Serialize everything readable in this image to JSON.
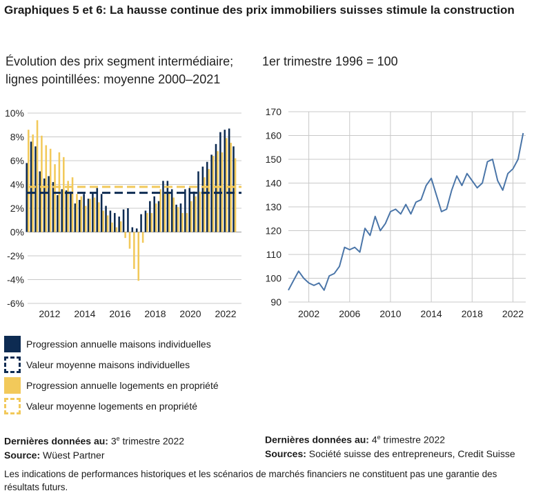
{
  "title": "Graphiques 5 et 6: La hausse continue des prix immobiliers suisses stimule la construction",
  "subtitle_left_1": "Évolution des prix segment intermédiaire;",
  "subtitle_left_2": "lignes pointillées: moyenne 2000–2021",
  "subtitle_right": "1er trimestre 1996 = 100",
  "colors": {
    "houses": "#0d2b52",
    "apartments": "#f2c95a",
    "line": "#4a75a8"
  },
  "legend": [
    {
      "label": "Progression annuelle maisons individuelles",
      "swatch": "solid-blue"
    },
    {
      "label": "Valeur moyenne maisons individuelles",
      "swatch": "dash-blue"
    },
    {
      "label": "Progression annuelle logements en propriété",
      "swatch": "solid-yellow"
    },
    {
      "label": "Valeur moyenne logements en propriété",
      "swatch": "dash-yellow"
    }
  ],
  "left_note": {
    "l1_bold": "Dernières données au:",
    "l1_pre": " 3",
    "l1_sup": "e",
    "l1_post": " trimestre 2022",
    "l2_bold": "Source:",
    "l2_text": " Wüest Partner"
  },
  "right_note": {
    "l1_bold": "Dernières données au:",
    "l1_pre": " 4",
    "l1_sup": "e",
    "l1_post": " trimestre 2022",
    "l2_bold": "Sources:",
    "l2_text": " Société suisse des entrepreneurs, Credit Suisse"
  },
  "disclaimer": "Les indications de performances historiques et les scénarios de marchés financiers ne constituent pas une garantie des résultats futurs.",
  "chart_data": [
    {
      "type": "bar",
      "x_tick_labels": [
        "2012",
        "2014",
        "2016",
        "2018",
        "2020",
        "2022"
      ],
      "x_tick_years": [
        2012,
        2014,
        2016,
        2018,
        2020,
        2022
      ],
      "y_tick_labels": [
        "10%",
        "8%",
        "6%",
        "4%",
        "2%",
        "0%",
        "-2%",
        "-4%",
        "-6%"
      ],
      "ylim": [
        -6,
        10
      ],
      "x_range": [
        2010.75,
        2022.9
      ],
      "grid": "horizontal",
      "quarters": [
        "2010Q4",
        "2011Q1",
        "2011Q2",
        "2011Q3",
        "2011Q4",
        "2012Q1",
        "2012Q2",
        "2012Q3",
        "2012Q4",
        "2013Q1",
        "2013Q2",
        "2013Q3",
        "2013Q4",
        "2014Q1",
        "2014Q2",
        "2014Q3",
        "2014Q4",
        "2015Q1",
        "2015Q2",
        "2015Q3",
        "2015Q4",
        "2016Q1",
        "2016Q2",
        "2016Q3",
        "2016Q4",
        "2017Q1",
        "2017Q2",
        "2017Q3",
        "2017Q4",
        "2018Q1",
        "2018Q2",
        "2018Q3",
        "2018Q4",
        "2019Q1",
        "2019Q2",
        "2019Q3",
        "2019Q4",
        "2020Q1",
        "2020Q2",
        "2020Q3",
        "2020Q4",
        "2021Q1",
        "2021Q2",
        "2021Q3",
        "2021Q4",
        "2022Q1",
        "2022Q2",
        "2022Q3"
      ],
      "series": [
        {
          "values": [
            5.8,
            7.6,
            7.2,
            5.1,
            4.5,
            4.7,
            4.2,
            3.1,
            3.6,
            3.5,
            3.4,
            2.4,
            2.7,
            3.2,
            2.8,
            3.3,
            3.7,
            3.2,
            2.2,
            1.8,
            1.6,
            1.3,
            1.9,
            2.0,
            0.4,
            0.3,
            1.5,
            1.8,
            2.6,
            3.0,
            2.6,
            4.3,
            4.3,
            3.6,
            2.3,
            2.4,
            3.6,
            3.7,
            3.4,
            5.1,
            5.5,
            5.9,
            6.5,
            7.4,
            8.4,
            8.6,
            8.7,
            7.2
          ]
        },
        {
          "values": [
            8.6,
            8.2,
            9.4,
            8.1,
            7.3,
            7.0,
            5.7,
            6.7,
            6.3,
            4.3,
            4.6,
            3.2,
            3.0,
            2.2,
            2.8,
            2.9,
            2.5,
            1.8,
            1.4,
            0.8,
            0.4,
            0.9,
            -0.5,
            -1.4,
            -3.1,
            -4.1,
            -0.9,
            1.6,
            1.6,
            2.4,
            3.6,
            3.2,
            3.4,
            2.9,
            2.1,
            1.6,
            1.6,
            2.6,
            3.0,
            3.4,
            4.6,
            5.3,
            6.4,
            6.8,
            6.7,
            7.9,
            7.5,
            6.2
          ]
        }
      ],
      "averages": {
        "houses": 3.3,
        "apartments": 3.8
      }
    },
    {
      "type": "line",
      "x_tick_labels": [
        "2002",
        "2006",
        "2010",
        "2014",
        "2018",
        "2022"
      ],
      "x_tick_years": [
        2002,
        2006,
        2010,
        2014,
        2018,
        2022
      ],
      "y_tick_labels": [
        "170",
        "160",
        "150",
        "140",
        "130",
        "120",
        "110",
        "100",
        "90"
      ],
      "ylim": [
        90,
        170
      ],
      "x_range": [
        2000,
        2023.25
      ],
      "grid": "horizontal",
      "x": [
        2000.0,
        2000.5,
        2001.0,
        2001.5,
        2002.0,
        2002.5,
        2003.0,
        2003.5,
        2004.0,
        2004.5,
        2005.0,
        2005.5,
        2006.0,
        2006.5,
        2007.0,
        2007.5,
        2008.0,
        2008.5,
        2009.0,
        2009.5,
        2010.0,
        2010.5,
        2011.0,
        2011.5,
        2012.0,
        2012.5,
        2013.0,
        2013.5,
        2014.0,
        2014.5,
        2015.0,
        2015.5,
        2016.0,
        2016.5,
        2017.0,
        2017.5,
        2018.0,
        2018.5,
        2019.0,
        2019.5,
        2020.0,
        2020.5,
        2021.0,
        2021.5,
        2022.0,
        2022.5,
        2023.0
      ],
      "values": [
        95,
        99,
        103,
        100,
        98,
        97,
        98,
        95,
        101,
        102,
        105,
        113,
        112,
        113,
        111,
        121,
        118,
        126,
        120,
        123,
        128,
        129,
        127,
        131,
        127,
        132,
        133,
        139,
        142,
        135,
        128,
        129,
        137,
        143,
        139,
        144,
        141,
        138,
        140,
        149,
        150,
        141,
        137,
        144,
        146,
        150,
        161
      ]
    }
  ]
}
